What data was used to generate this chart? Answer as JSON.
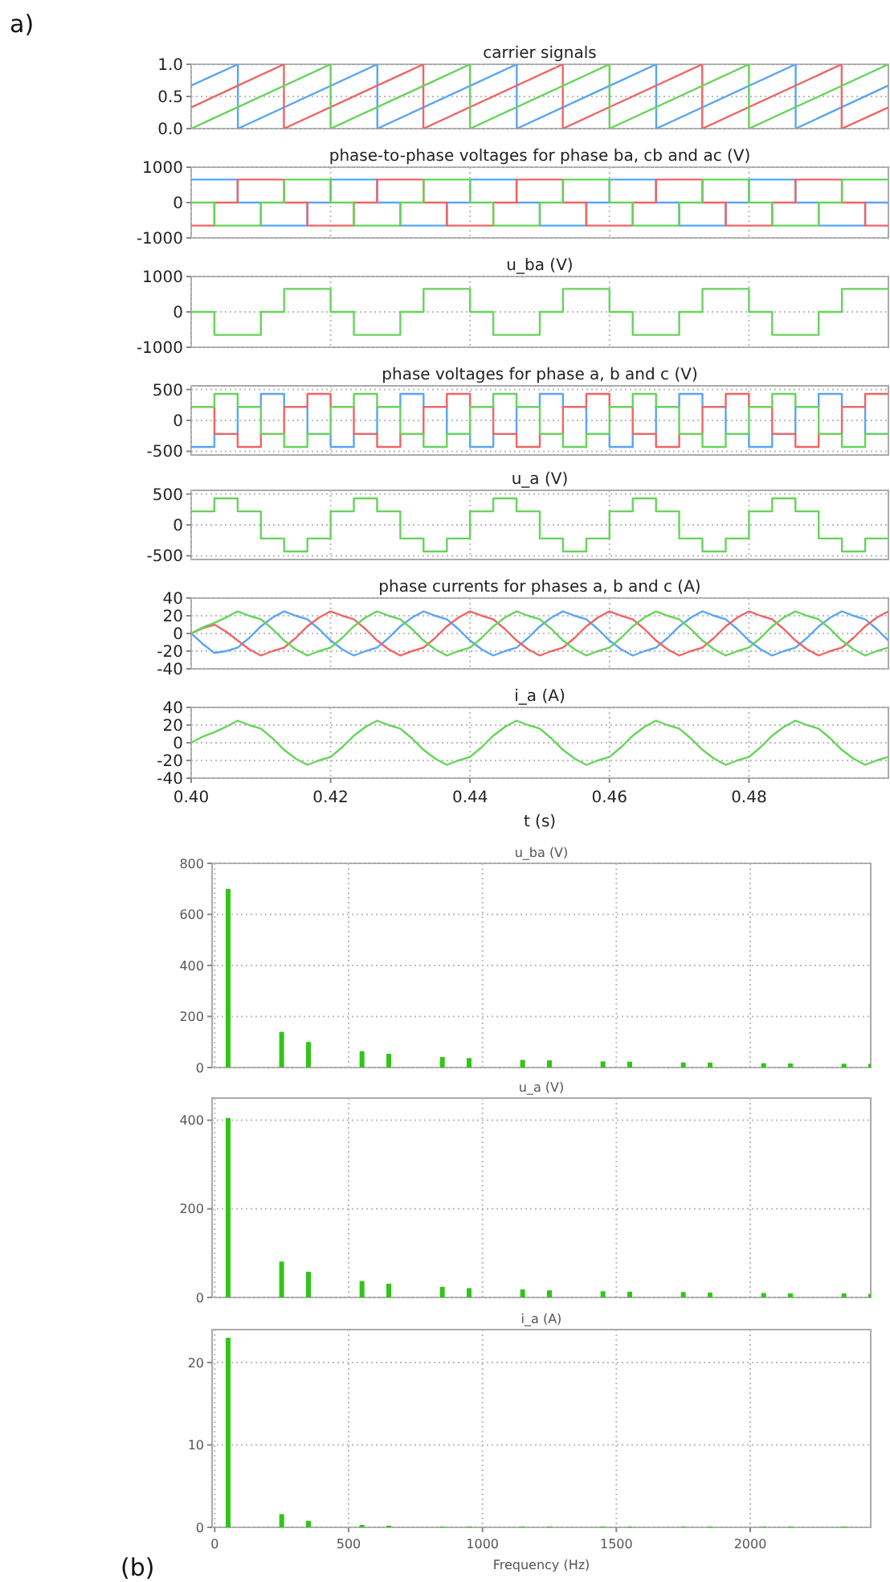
{
  "chart_data": [
    {
      "type": "line",
      "title": "carrier signals",
      "annotations": [
        "a)"
      ],
      "xlim": [
        0.4,
        0.5
      ],
      "xticks": [
        0.4,
        0.42,
        0.44,
        0.46,
        0.48
      ],
      "ylim": [
        0,
        1
      ],
      "yticks": [
        {
          "value": 0,
          "label": "0.0"
        },
        {
          "value": 0.5,
          "label": "0.5"
        },
        {
          "value": 1,
          "label": "1.0"
        }
      ],
      "grid": true,
      "tick_labels": "y",
      "series": [
        {
          "color": "#5aa5f5",
          "x": [
            0.4,
            0.4067,
            0.4067,
            0.4267,
            0.4267,
            0.4467,
            0.4467,
            0.4667,
            0.4667,
            0.4867,
            0.4867,
            0.5
          ],
          "values": [
            0.67,
            1,
            0,
            1,
            0,
            1,
            0,
            1,
            0,
            1,
            0,
            0.67
          ]
        },
        {
          "color": "#f06464",
          "x": [
            0.4,
            0.4133,
            0.4133,
            0.4333,
            0.4333,
            0.4533,
            0.4533,
            0.4733,
            0.4733,
            0.4933,
            0.4933,
            0.5
          ],
          "values": [
            0.33,
            1,
            0,
            1,
            0,
            1,
            0,
            1,
            0,
            1,
            0,
            0.33
          ]
        },
        {
          "color": "#66d45a",
          "x": [
            0.4,
            0.42,
            0.42,
            0.44,
            0.44,
            0.46,
            0.46,
            0.48,
            0.48,
            0.5
          ],
          "values": [
            0,
            1,
            0,
            1,
            0,
            1,
            0,
            1,
            0,
            1
          ]
        }
      ]
    },
    {
      "type": "step",
      "title": "phase-to-phase voltages for phase ba, cb and ac (V)",
      "xlim": [
        0.4,
        0.5
      ],
      "xticks": [
        0.4,
        0.42,
        0.44,
        0.46,
        0.48
      ],
      "ylim": [
        -1000,
        1000
      ],
      "yticks": [
        -1000,
        0,
        1000
      ],
      "grid": true,
      "tick_labels": "y",
      "x": [
        0.4,
        0.40333,
        0.40667,
        0.41,
        0.41333,
        0.41667,
        0.42,
        0.42333,
        0.42667,
        0.43,
        0.43333,
        0.43667,
        0.44,
        0.44333,
        0.44667,
        0.45,
        0.45333,
        0.45667,
        0.46,
        0.46333,
        0.46667,
        0.47,
        0.47333,
        0.47667,
        0.48,
        0.48333,
        0.48667,
        0.49,
        0.49333,
        0.49667,
        0.5
      ],
      "series": [
        {
          "color": "#5aa5f5",
          "values": [
            650,
            650,
            0,
            -650,
            -650,
            0,
            650,
            650,
            0,
            -650,
            -650,
            0,
            650,
            650,
            0,
            -650,
            -650,
            0,
            650,
            650,
            0,
            -650,
            -650,
            0,
            650,
            650,
            0,
            -650,
            -650,
            0,
            0
          ]
        },
        {
          "color": "#f06464",
          "values": [
            -650,
            0,
            650,
            650,
            0,
            -650,
            -650,
            0,
            650,
            650,
            0,
            -650,
            -650,
            0,
            650,
            650,
            0,
            -650,
            -650,
            0,
            650,
            650,
            0,
            -650,
            -650,
            0,
            650,
            650,
            0,
            -650,
            -650
          ]
        },
        {
          "color": "#66d45a",
          "values": [
            0,
            -650,
            -650,
            0,
            650,
            650,
            0,
            -650,
            -650,
            0,
            650,
            650,
            0,
            -650,
            -650,
            0,
            650,
            650,
            0,
            -650,
            -650,
            0,
            650,
            650,
            0,
            -650,
            -650,
            0,
            650,
            650,
            650
          ]
        }
      ]
    },
    {
      "type": "step",
      "title": "u_ba (V)",
      "xlim": [
        0.4,
        0.5
      ],
      "xticks": [
        0.4,
        0.42,
        0.44,
        0.46,
        0.48
      ],
      "ylim": [
        -1000,
        1000
      ],
      "yticks": [
        -1000,
        0,
        1000
      ],
      "grid": true,
      "tick_labels": "y",
      "x": [
        0.4,
        0.40333,
        0.40667,
        0.41,
        0.41333,
        0.41667,
        0.42,
        0.42333,
        0.42667,
        0.43,
        0.43333,
        0.43667,
        0.44,
        0.44333,
        0.44667,
        0.45,
        0.45333,
        0.45667,
        0.46,
        0.46333,
        0.46667,
        0.47,
        0.47333,
        0.47667,
        0.48,
        0.48333,
        0.48667,
        0.49,
        0.49333,
        0.49667,
        0.5
      ],
      "color": "#66d45a",
      "values": [
        0,
        -650,
        -650,
        0,
        650,
        650,
        0,
        -650,
        -650,
        0,
        650,
        650,
        0,
        -650,
        -650,
        0,
        650,
        650,
        0,
        -650,
        -650,
        0,
        650,
        650,
        0,
        -650,
        -650,
        0,
        650,
        650,
        650
      ]
    },
    {
      "type": "step",
      "title": "phase voltages for phase a, b and c  (V)",
      "xlim": [
        0.4,
        0.5
      ],
      "xticks": [
        0.4,
        0.42,
        0.44,
        0.46,
        0.48
      ],
      "ylim": [
        -560,
        560
      ],
      "yticks": [
        -500,
        0,
        500
      ],
      "grid": true,
      "tick_labels": "y",
      "x": [
        0.4,
        0.40333,
        0.40667,
        0.41,
        0.41333,
        0.41667,
        0.42,
        0.42333,
        0.42667,
        0.43,
        0.43333,
        0.43667,
        0.44,
        0.44333,
        0.44667,
        0.45,
        0.45333,
        0.45667,
        0.46,
        0.46333,
        0.46667,
        0.47,
        0.47333,
        0.47667,
        0.48,
        0.48333,
        0.48667,
        0.49,
        0.49333,
        0.49667,
        0.5
      ],
      "series": [
        {
          "color": "#5aa5f5",
          "values": [
            -430,
            -220,
            220,
            430,
            220,
            -220,
            -430,
            -220,
            220,
            430,
            220,
            -220,
            -430,
            -220,
            220,
            430,
            220,
            -220,
            -430,
            -220,
            220,
            430,
            220,
            -220,
            -430,
            -220,
            220,
            430,
            220,
            -220,
            -220
          ]
        },
        {
          "color": "#f06464",
          "values": [
            220,
            -220,
            -430,
            -220,
            220,
            430,
            220,
            -220,
            -430,
            -220,
            220,
            430,
            220,
            -220,
            -430,
            -220,
            220,
            430,
            220,
            -220,
            -430,
            -220,
            220,
            430,
            220,
            -220,
            -430,
            -220,
            220,
            430,
            430
          ]
        },
        {
          "color": "#66d45a",
          "values": [
            220,
            430,
            220,
            -220,
            -430,
            -220,
            220,
            430,
            220,
            -220,
            -430,
            -220,
            220,
            430,
            220,
            -220,
            -430,
            -220,
            220,
            430,
            220,
            -220,
            -430,
            -220,
            220,
            430,
            220,
            -220,
            -430,
            -220,
            -220
          ]
        }
      ]
    },
    {
      "type": "step",
      "title": "u_a (V)",
      "xlim": [
        0.4,
        0.5
      ],
      "xticks": [
        0.4,
        0.42,
        0.44,
        0.46,
        0.48
      ],
      "ylim": [
        -560,
        560
      ],
      "yticks": [
        -500,
        0,
        500
      ],
      "grid": true,
      "tick_labels": "y",
      "x": [
        0.4,
        0.40333,
        0.40667,
        0.41,
        0.41333,
        0.41667,
        0.42,
        0.42333,
        0.42667,
        0.43,
        0.43333,
        0.43667,
        0.44,
        0.44333,
        0.44667,
        0.45,
        0.45333,
        0.45667,
        0.46,
        0.46333,
        0.46667,
        0.47,
        0.47333,
        0.47667,
        0.48,
        0.48333,
        0.48667,
        0.49,
        0.49333,
        0.49667,
        0.5
      ],
      "color": "#66d45a",
      "values": [
        220,
        430,
        220,
        -220,
        -430,
        -220,
        220,
        430,
        220,
        -220,
        -430,
        -220,
        220,
        430,
        220,
        -220,
        -430,
        -220,
        220,
        430,
        220,
        -220,
        -430,
        -220,
        220,
        430,
        220,
        -220,
        -430,
        -220,
        -220
      ]
    },
    {
      "type": "line",
      "title": "phase currents for phases a, b and c  (A)",
      "xlim": [
        0.4,
        0.5
      ],
      "xticks": [
        0.4,
        0.42,
        0.44,
        0.46,
        0.48
      ],
      "ylim": [
        -40,
        40
      ],
      "yticks": [
        -40,
        -20,
        0,
        20,
        40
      ],
      "grid": true,
      "tick_labels": "y",
      "x": [
        0.4,
        0.40167,
        0.40333,
        0.405,
        0.40667,
        0.40833,
        0.41,
        0.41167,
        0.41333,
        0.415,
        0.41667,
        0.41833,
        0.42,
        0.42167,
        0.42333,
        0.425,
        0.42667,
        0.42833,
        0.43,
        0.43167,
        0.43333,
        0.435,
        0.43667,
        0.43833,
        0.44,
        0.44167,
        0.44333,
        0.445,
        0.44667,
        0.44833,
        0.45,
        0.45167,
        0.45333,
        0.455,
        0.45667,
        0.45833,
        0.46,
        0.46167,
        0.46333,
        0.465,
        0.46667,
        0.46833,
        0.47,
        0.47167,
        0.47333,
        0.475,
        0.47667,
        0.47833,
        0.48,
        0.48167,
        0.48333,
        0.485,
        0.48667,
        0.48833,
        0.49,
        0.49167,
        0.49333,
        0.495,
        0.49667,
        0.49833,
        0.5
      ],
      "series": [
        {
          "color": "#5aa5f5",
          "values": [
            0,
            -12,
            -22,
            -20,
            -16,
            -5,
            8,
            18,
            25,
            20,
            16,
            5,
            -8,
            -18,
            -25,
            -20,
            -16,
            -5,
            8,
            18,
            25,
            20,
            16,
            5,
            -8,
            -18,
            -25,
            -20,
            -16,
            -5,
            8,
            18,
            25,
            20,
            16,
            5,
            -8,
            -18,
            -25,
            -20,
            -16,
            -5,
            8,
            18,
            25,
            20,
            16,
            5,
            -8,
            -18,
            -25,
            -20,
            -16,
            -5,
            8,
            18,
            25,
            20,
            16,
            5,
            -8
          ]
        },
        {
          "color": "#f06464",
          "values": [
            0,
            6,
            10,
            2,
            -8,
            -18,
            -25,
            -20,
            -16,
            -5,
            8,
            18,
            25,
            20,
            16,
            5,
            -8,
            -18,
            -25,
            -20,
            -16,
            -5,
            8,
            18,
            25,
            20,
            16,
            5,
            -8,
            -18,
            -25,
            -20,
            -16,
            -5,
            8,
            18,
            25,
            20,
            16,
            5,
            -8,
            -18,
            -25,
            -20,
            -16,
            -5,
            8,
            18,
            25,
            20,
            16,
            5,
            -8,
            -18,
            -25,
            -20,
            -16,
            -5,
            8,
            18,
            25
          ]
        },
        {
          "color": "#66d45a",
          "values": [
            0,
            7,
            12,
            18,
            25,
            20,
            16,
            5,
            -8,
            -18,
            -25,
            -20,
            -16,
            -5,
            8,
            18,
            25,
            20,
            16,
            5,
            -8,
            -18,
            -25,
            -20,
            -16,
            -5,
            8,
            18,
            25,
            20,
            16,
            5,
            -8,
            -18,
            -25,
            -20,
            -16,
            -5,
            8,
            18,
            25,
            20,
            16,
            5,
            -8,
            -18,
            -25,
            -20,
            -16,
            -5,
            8,
            18,
            25,
            20,
            16,
            5,
            -8,
            -18,
            -25,
            -20,
            -16
          ]
        }
      ]
    },
    {
      "type": "line",
      "title": "i_a  (A)",
      "xlabel": "t (s)",
      "xlim": [
        0.4,
        0.5
      ],
      "xticks": [
        {
          "value": 0.4,
          "label": "0.40"
        },
        {
          "value": 0.42,
          "label": "0.42"
        },
        {
          "value": 0.44,
          "label": "0.44"
        },
        {
          "value": 0.46,
          "label": "0.46"
        },
        {
          "value": 0.48,
          "label": "0.48"
        }
      ],
      "ylim": [
        -40,
        40
      ],
      "yticks": [
        -40,
        -20,
        0,
        20,
        40
      ],
      "grid": true,
      "x": [
        0.4,
        0.40167,
        0.40333,
        0.405,
        0.40667,
        0.40833,
        0.41,
        0.41167,
        0.41333,
        0.415,
        0.41667,
        0.41833,
        0.42,
        0.42167,
        0.42333,
        0.425,
        0.42667,
        0.42833,
        0.43,
        0.43167,
        0.43333,
        0.435,
        0.43667,
        0.43833,
        0.44,
        0.44167,
        0.44333,
        0.445,
        0.44667,
        0.44833,
        0.45,
        0.45167,
        0.45333,
        0.455,
        0.45667,
        0.45833,
        0.46,
        0.46167,
        0.46333,
        0.465,
        0.46667,
        0.46833,
        0.47,
        0.47167,
        0.47333,
        0.475,
        0.47667,
        0.47833,
        0.48,
        0.48167,
        0.48333,
        0.485,
        0.48667,
        0.48833,
        0.49,
        0.49167,
        0.49333,
        0.495,
        0.49667,
        0.49833,
        0.5
      ],
      "color": "#66d45a",
      "values": [
        0,
        7,
        12,
        18,
        25,
        20,
        16,
        5,
        -8,
        -18,
        -25,
        -20,
        -16,
        -5,
        8,
        18,
        25,
        20,
        16,
        5,
        -8,
        -18,
        -25,
        -20,
        -16,
        -5,
        8,
        18,
        25,
        20,
        16,
        5,
        -8,
        -18,
        -25,
        -20,
        -16,
        -5,
        8,
        18,
        25,
        20,
        16,
        5,
        -8,
        -18,
        -25,
        -20,
        -16,
        -5,
        8,
        18,
        25,
        20,
        16,
        5,
        -8,
        -18,
        -25,
        -20,
        -16
      ]
    },
    {
      "type": "bar",
      "title": "u_ba (V)",
      "xlim": [
        -10,
        2450
      ],
      "xticks": [
        0,
        500,
        1000,
        1500,
        2000
      ],
      "ylim": [
        0,
        800
      ],
      "yticks": [
        0,
        200,
        400,
        600,
        800
      ],
      "grid": true,
      "tick_labels": "y",
      "color": "#33c41a",
      "x": [
        50,
        250,
        350,
        550,
        650,
        850,
        950,
        1150,
        1250,
        1450,
        1550,
        1750,
        1850,
        2050,
        2150,
        2350,
        2450
      ],
      "values": [
        700,
        140,
        100,
        64,
        54,
        41,
        37,
        30,
        28,
        24,
        23,
        20,
        19,
        17,
        16,
        15,
        14
      ]
    },
    {
      "type": "bar",
      "title": "u_a (V)",
      "xlim": [
        -10,
        2450
      ],
      "xticks": [
        0,
        500,
        1000,
        1500,
        2000
      ],
      "ylim": [
        0,
        450
      ],
      "yticks": [
        0,
        200,
        400
      ],
      "grid": true,
      "tick_labels": "y",
      "color": "#33c41a",
      "x": [
        50,
        250,
        350,
        550,
        650,
        850,
        950,
        1150,
        1250,
        1450,
        1550,
        1750,
        1850,
        2050,
        2150,
        2350,
        2450
      ],
      "values": [
        405,
        81,
        58,
        37,
        31,
        24,
        21,
        18,
        16,
        14,
        13,
        12,
        11,
        10,
        9,
        9,
        8
      ]
    },
    {
      "type": "bar",
      "title": "i_a (A)",
      "xlabel": "Frequency (Hz)",
      "annotations": [
        "(b)"
      ],
      "xlim": [
        -10,
        2450
      ],
      "xticks": [
        0,
        500,
        1000,
        1500,
        2000
      ],
      "ylim": [
        0,
        24
      ],
      "yticks": [
        0,
        10,
        20
      ],
      "grid": true,
      "color": "#33c41a",
      "x": [
        50,
        250,
        350,
        550,
        650,
        850,
        950,
        1150,
        1250,
        1450,
        1550,
        1750,
        1850,
        2050,
        2150,
        2350
      ],
      "values": [
        23,
        1.6,
        0.8,
        0.3,
        0.2,
        0.1,
        0.1,
        0.1,
        0.1,
        0.1,
        0.1,
        0.1,
        0.1,
        0.1,
        0.1,
        0.1
      ]
    }
  ]
}
